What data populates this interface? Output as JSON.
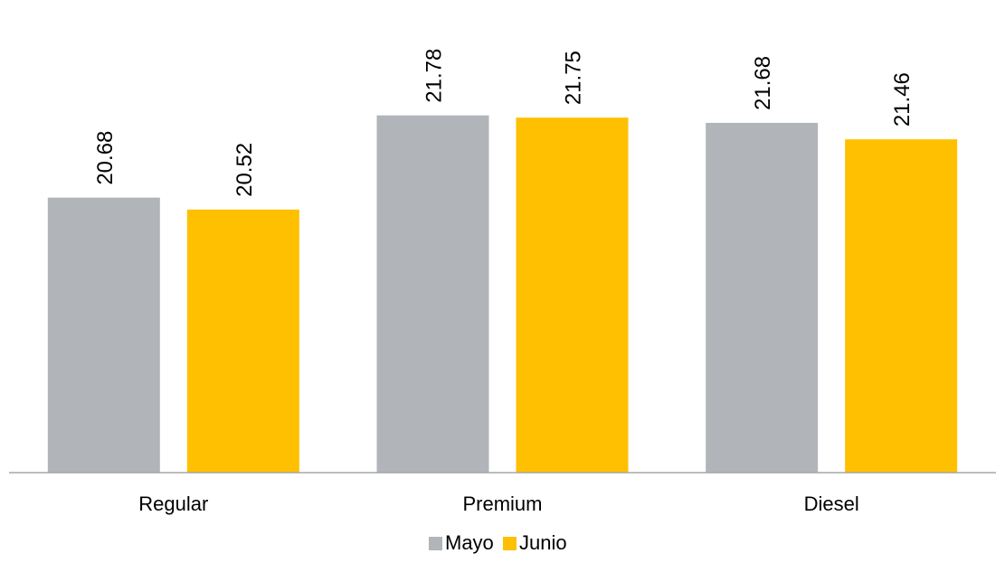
{
  "chart_data": {
    "type": "bar",
    "categories": [
      "Regular",
      "Premium",
      "Diesel"
    ],
    "series": [
      {
        "name": "Mayo",
        "values": [
          20.68,
          21.78,
          21.68
        ],
        "color": "#b1b5ba"
      },
      {
        "name": "Junio",
        "values": [
          20.52,
          21.75,
          21.46
        ],
        "color": "#fec000"
      }
    ],
    "value_labels": true,
    "value_label_rotation": "vertical",
    "ylim": [
      17.0,
      22.0
    ],
    "grid": false,
    "legend_position": "bottom"
  }
}
